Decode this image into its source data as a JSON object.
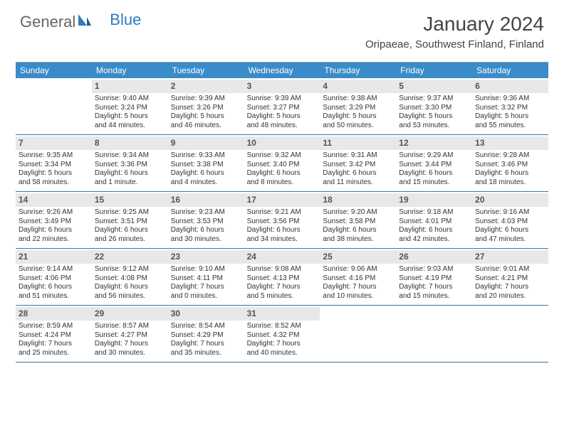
{
  "logo": {
    "part1": "General",
    "part2": "Blue"
  },
  "title": "January 2024",
  "location": "Oripaeae, Southwest Finland, Finland",
  "colors": {
    "header_bg": "#3a8bc9",
    "header_text": "#ffffff",
    "daynum_bg": "#e8e8e8",
    "week_border": "#3a77a8",
    "logo_blue": "#2f7bbf"
  },
  "day_headers": [
    "Sunday",
    "Monday",
    "Tuesday",
    "Wednesday",
    "Thursday",
    "Friday",
    "Saturday"
  ],
  "weeks": [
    [
      {
        "n": "",
        "empty": true,
        "sr": "",
        "ss": "",
        "dl1": "",
        "dl2": ""
      },
      {
        "n": "1",
        "sr": "Sunrise: 9:40 AM",
        "ss": "Sunset: 3:24 PM",
        "dl1": "Daylight: 5 hours",
        "dl2": "and 44 minutes."
      },
      {
        "n": "2",
        "sr": "Sunrise: 9:39 AM",
        "ss": "Sunset: 3:26 PM",
        "dl1": "Daylight: 5 hours",
        "dl2": "and 46 minutes."
      },
      {
        "n": "3",
        "sr": "Sunrise: 9:39 AM",
        "ss": "Sunset: 3:27 PM",
        "dl1": "Daylight: 5 hours",
        "dl2": "and 48 minutes."
      },
      {
        "n": "4",
        "sr": "Sunrise: 9:38 AM",
        "ss": "Sunset: 3:29 PM",
        "dl1": "Daylight: 5 hours",
        "dl2": "and 50 minutes."
      },
      {
        "n": "5",
        "sr": "Sunrise: 9:37 AM",
        "ss": "Sunset: 3:30 PM",
        "dl1": "Daylight: 5 hours",
        "dl2": "and 53 minutes."
      },
      {
        "n": "6",
        "sr": "Sunrise: 9:36 AM",
        "ss": "Sunset: 3:32 PM",
        "dl1": "Daylight: 5 hours",
        "dl2": "and 55 minutes."
      }
    ],
    [
      {
        "n": "7",
        "sr": "Sunrise: 9:35 AM",
        "ss": "Sunset: 3:34 PM",
        "dl1": "Daylight: 5 hours",
        "dl2": "and 58 minutes."
      },
      {
        "n": "8",
        "sr": "Sunrise: 9:34 AM",
        "ss": "Sunset: 3:36 PM",
        "dl1": "Daylight: 6 hours",
        "dl2": "and 1 minute."
      },
      {
        "n": "9",
        "sr": "Sunrise: 9:33 AM",
        "ss": "Sunset: 3:38 PM",
        "dl1": "Daylight: 6 hours",
        "dl2": "and 4 minutes."
      },
      {
        "n": "10",
        "sr": "Sunrise: 9:32 AM",
        "ss": "Sunset: 3:40 PM",
        "dl1": "Daylight: 6 hours",
        "dl2": "and 8 minutes."
      },
      {
        "n": "11",
        "sr": "Sunrise: 9:31 AM",
        "ss": "Sunset: 3:42 PM",
        "dl1": "Daylight: 6 hours",
        "dl2": "and 11 minutes."
      },
      {
        "n": "12",
        "sr": "Sunrise: 9:29 AM",
        "ss": "Sunset: 3:44 PM",
        "dl1": "Daylight: 6 hours",
        "dl2": "and 15 minutes."
      },
      {
        "n": "13",
        "sr": "Sunrise: 9:28 AM",
        "ss": "Sunset: 3:46 PM",
        "dl1": "Daylight: 6 hours",
        "dl2": "and 18 minutes."
      }
    ],
    [
      {
        "n": "14",
        "sr": "Sunrise: 9:26 AM",
        "ss": "Sunset: 3:49 PM",
        "dl1": "Daylight: 6 hours",
        "dl2": "and 22 minutes."
      },
      {
        "n": "15",
        "sr": "Sunrise: 9:25 AM",
        "ss": "Sunset: 3:51 PM",
        "dl1": "Daylight: 6 hours",
        "dl2": "and 26 minutes."
      },
      {
        "n": "16",
        "sr": "Sunrise: 9:23 AM",
        "ss": "Sunset: 3:53 PM",
        "dl1": "Daylight: 6 hours",
        "dl2": "and 30 minutes."
      },
      {
        "n": "17",
        "sr": "Sunrise: 9:21 AM",
        "ss": "Sunset: 3:56 PM",
        "dl1": "Daylight: 6 hours",
        "dl2": "and 34 minutes."
      },
      {
        "n": "18",
        "sr": "Sunrise: 9:20 AM",
        "ss": "Sunset: 3:58 PM",
        "dl1": "Daylight: 6 hours",
        "dl2": "and 38 minutes."
      },
      {
        "n": "19",
        "sr": "Sunrise: 9:18 AM",
        "ss": "Sunset: 4:01 PM",
        "dl1": "Daylight: 6 hours",
        "dl2": "and 42 minutes."
      },
      {
        "n": "20",
        "sr": "Sunrise: 9:16 AM",
        "ss": "Sunset: 4:03 PM",
        "dl1": "Daylight: 6 hours",
        "dl2": "and 47 minutes."
      }
    ],
    [
      {
        "n": "21",
        "sr": "Sunrise: 9:14 AM",
        "ss": "Sunset: 4:06 PM",
        "dl1": "Daylight: 6 hours",
        "dl2": "and 51 minutes."
      },
      {
        "n": "22",
        "sr": "Sunrise: 9:12 AM",
        "ss": "Sunset: 4:08 PM",
        "dl1": "Daylight: 6 hours",
        "dl2": "and 56 minutes."
      },
      {
        "n": "23",
        "sr": "Sunrise: 9:10 AM",
        "ss": "Sunset: 4:11 PM",
        "dl1": "Daylight: 7 hours",
        "dl2": "and 0 minutes."
      },
      {
        "n": "24",
        "sr": "Sunrise: 9:08 AM",
        "ss": "Sunset: 4:13 PM",
        "dl1": "Daylight: 7 hours",
        "dl2": "and 5 minutes."
      },
      {
        "n": "25",
        "sr": "Sunrise: 9:06 AM",
        "ss": "Sunset: 4:16 PM",
        "dl1": "Daylight: 7 hours",
        "dl2": "and 10 minutes."
      },
      {
        "n": "26",
        "sr": "Sunrise: 9:03 AM",
        "ss": "Sunset: 4:19 PM",
        "dl1": "Daylight: 7 hours",
        "dl2": "and 15 minutes."
      },
      {
        "n": "27",
        "sr": "Sunrise: 9:01 AM",
        "ss": "Sunset: 4:21 PM",
        "dl1": "Daylight: 7 hours",
        "dl2": "and 20 minutes."
      }
    ],
    [
      {
        "n": "28",
        "sr": "Sunrise: 8:59 AM",
        "ss": "Sunset: 4:24 PM",
        "dl1": "Daylight: 7 hours",
        "dl2": "and 25 minutes."
      },
      {
        "n": "29",
        "sr": "Sunrise: 8:57 AM",
        "ss": "Sunset: 4:27 PM",
        "dl1": "Daylight: 7 hours",
        "dl2": "and 30 minutes."
      },
      {
        "n": "30",
        "sr": "Sunrise: 8:54 AM",
        "ss": "Sunset: 4:29 PM",
        "dl1": "Daylight: 7 hours",
        "dl2": "and 35 minutes."
      },
      {
        "n": "31",
        "sr": "Sunrise: 8:52 AM",
        "ss": "Sunset: 4:32 PM",
        "dl1": "Daylight: 7 hours",
        "dl2": "and 40 minutes."
      },
      {
        "n": "",
        "empty": true,
        "sr": "",
        "ss": "",
        "dl1": "",
        "dl2": ""
      },
      {
        "n": "",
        "empty": true,
        "sr": "",
        "ss": "",
        "dl1": "",
        "dl2": ""
      },
      {
        "n": "",
        "empty": true,
        "sr": "",
        "ss": "",
        "dl1": "",
        "dl2": ""
      }
    ]
  ]
}
